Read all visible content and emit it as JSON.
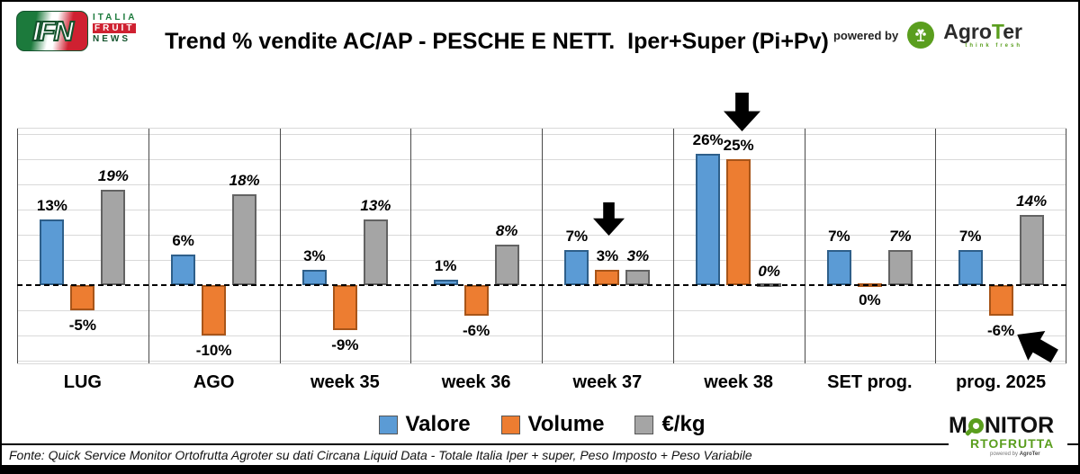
{
  "header": {
    "title": "Trend % vendite AC/AP - PESCHE E NETT.  Iper+Super (Pi+Pv)",
    "powered_by": "powered by",
    "ifn_logo": {
      "acronym": "IFN",
      "line1": "ITALIA",
      "line2": "FRUIT",
      "line3": "NEWS"
    },
    "agroter_logo": {
      "name_prefix": "Agro",
      "name_t": "T",
      "name_suffix": "er",
      "tagline": "think fresh"
    }
  },
  "chart_data": {
    "type": "bar",
    "title": "Trend % vendite AC/AP - PESCHE E NETT.  Iper+Super (Pi+Pv)",
    "categories": [
      "LUG",
      "AGO",
      "week 35",
      "week 36",
      "week 37",
      "week 38",
      "SET prog.",
      "prog. 2025"
    ],
    "series": [
      {
        "name": "Valore",
        "color": "#5B9BD5",
        "border": "#2e5f8a",
        "values": [
          13,
          6,
          3,
          1,
          7,
          26,
          7,
          7
        ]
      },
      {
        "name": "Volume",
        "color": "#ED7D31",
        "border": "#a85519",
        "values": [
          -5,
          -10,
          -9,
          -6,
          3,
          25,
          0,
          -6
        ]
      },
      {
        "name": "€/kg",
        "color": "#A5A5A5",
        "border": "#636363",
        "values": [
          19,
          18,
          13,
          8,
          3,
          0,
          7,
          14
        ]
      }
    ],
    "data_labels": [
      [
        "13%",
        "6%",
        "3%",
        "1%",
        "7%",
        "26%",
        "7%",
        "7%"
      ],
      [
        "-5%",
        "-10%",
        "-9%",
        "-6%",
        "3%",
        "25%",
        "0%",
        "-6%"
      ],
      [
        "19%",
        "18%",
        "13%",
        "8%",
        "3%",
        "0%",
        "7%",
        "14%"
      ]
    ],
    "zero_label_sides": [
      {
        "series": 2,
        "category": 5,
        "side": "above"
      },
      {
        "series": 1,
        "category": 6,
        "side": "below"
      }
    ],
    "ylim": [
      -15.9,
      31.1
    ],
    "gridline_step": 5,
    "grid": true,
    "zero_line_style": "dashed-black",
    "legend_position": "bottom",
    "annotations": [
      {
        "id": "week37-drop",
        "icon": "down-arrow",
        "target": "week 37"
      },
      {
        "id": "week38-drop",
        "icon": "down-arrow",
        "target": "week 38"
      },
      {
        "id": "prog2025-rebound",
        "icon": "up-left-arrow",
        "target": "prog. 2025"
      }
    ]
  },
  "legend": {
    "items": [
      {
        "label": "Valore",
        "color": "#5B9BD5"
      },
      {
        "label": "Volume",
        "color": "#ED7D31"
      },
      {
        "label": "€/kg",
        "color": "#A5A5A5"
      }
    ]
  },
  "footer": {
    "source": "Fonte: Quick Service Monitor Ortofrutta Agroter su dati Circana Liquid Data - Totale Italia Iper + super, Peso Imposto + Peso Variabile"
  },
  "monitor_logo": {
    "word_part1": "M",
    "word_part2": "NITOR",
    "line2": "RTOFRUTTA",
    "powered_prefix": "powered by ",
    "powered_name": "AgroTer"
  }
}
